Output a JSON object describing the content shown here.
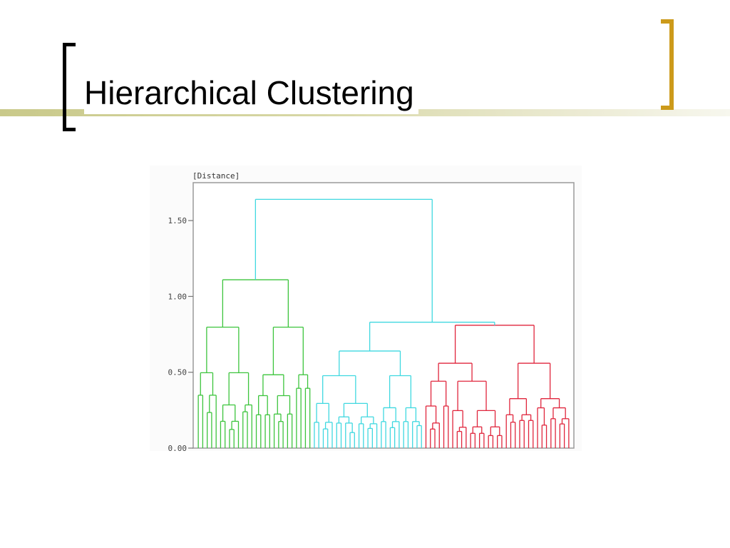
{
  "slide": {
    "title": "Hierarchical Clustering",
    "accent_color": "#cc9a1a",
    "bracket_color": "#000000"
  },
  "chart_data": {
    "type": "dendrogram",
    "ylabel": "[Distance]",
    "ylim": [
      0,
      1.75
    ],
    "yticks": [
      {
        "value": 0.0,
        "label": "0.00"
      },
      {
        "value": 0.5,
        "label": "0.50"
      },
      {
        "value": 1.0,
        "label": "1.00"
      },
      {
        "value": 1.5,
        "label": "1.50"
      }
    ],
    "grid": false,
    "clusters": [
      {
        "color": "#3cc43c",
        "leaf_count": 26,
        "merge_height": 1.11
      },
      {
        "color": "#3fd8e0",
        "leaf_count": 25,
        "merge_height": 0.64
      },
      {
        "color": "#e0253c",
        "leaf_count": 33,
        "merge_height": 0.81
      }
    ],
    "root_merge_height": 1.64,
    "root_color": "#3fd8e0"
  }
}
